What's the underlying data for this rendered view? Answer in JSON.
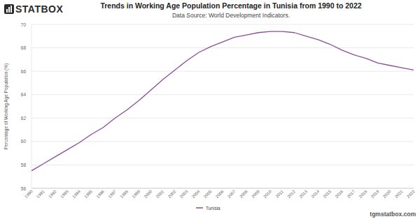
{
  "chart_data": {
    "type": "line",
    "title": "Trends in Working Age Population Percentage in Tunisia from 1990 to 2022",
    "subtitle": "Data Source: World Development Indicators.",
    "brand": "STATBOX",
    "footer": "tgmstatbox.com",
    "y_label": "Percentage of Working Age Population (%)",
    "categories": [
      "1990",
      "1991",
      "1992",
      "1993",
      "1994",
      "1995",
      "1996",
      "1997",
      "1998",
      "1999",
      "2000",
      "2001",
      "2002",
      "2003",
      "2004",
      "2005",
      "2006",
      "2007",
      "2008",
      "2009",
      "2010",
      "2011",
      "2012",
      "2013",
      "2014",
      "2015",
      "2016",
      "2017",
      "2018",
      "2019",
      "2020",
      "2021",
      "2022"
    ],
    "series": [
      {
        "name": "Tunisia",
        "color": "#8e4a9e",
        "values": [
          57.5,
          58.1,
          58.7,
          59.3,
          59.9,
          60.6,
          61.2,
          62.0,
          62.7,
          63.5,
          64.4,
          65.3,
          66.1,
          66.9,
          67.6,
          68.1,
          68.5,
          68.9,
          69.1,
          69.3,
          69.4,
          69.4,
          69.3,
          69.0,
          68.7,
          68.3,
          67.8,
          67.4,
          67.1,
          66.7,
          66.5,
          66.3,
          66.1
        ]
      }
    ],
    "ylim": [
      56,
      70
    ],
    "yticks": [
      56,
      58,
      60,
      62,
      64,
      66,
      68,
      70
    ],
    "grid": true,
    "legend": "bottom"
  }
}
